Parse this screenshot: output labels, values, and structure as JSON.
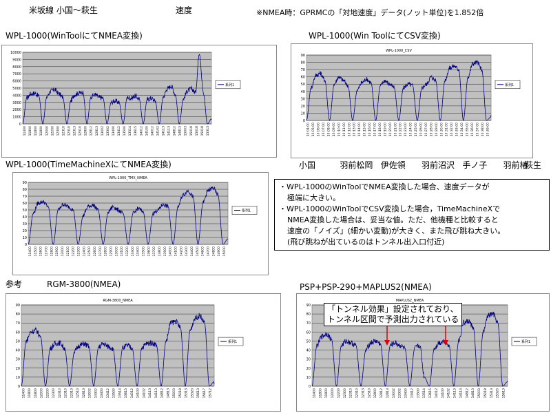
{
  "header": {
    "route": "米坂線 小国〜萩生",
    "topic": "速度",
    "formula": "※NMEA時：GPRMCの「対地速度」データ(ノット単位)を1.852倍"
  },
  "stations": [
    "小国",
    "羽前松岡",
    "伊佐領",
    "羽前沼沢",
    "手ノ子",
    "羽前椿",
    "萩生"
  ],
  "notes": [
    "・WPL-1000のWinToolでNMEA変換した場合、速度データが",
    "極端に大きい。",
    "・WPL-1000のWinToolでCSV変換した場合，TimeMachineXで",
    "NMEA変換した場合は、妥当な値。ただ、他機種と比較すると",
    "速度の「ノイズ」(細かい変動)が大きく、また飛び跳ね大きい。",
    "(飛び跳ねが出ているのはトンネル出入口付近)"
  ],
  "callout": [
    "「トンネル効果」設定されており、",
    "トンネル区間で予測出力されている"
  ],
  "chart_data": [
    {
      "id": "c1",
      "type": "line",
      "label": "WPL-1000(WinToolにてNMEA変換)",
      "title": "",
      "series": [
        {
          "name": "系列1",
          "values": [
            0,
            3600,
            4200,
            4300,
            3900,
            0,
            3800,
            4600,
            4800,
            4200,
            3700,
            0,
            3300,
            4100,
            4300,
            4400,
            0,
            3800,
            4100,
            3700,
            3600,
            0,
            3000,
            3200,
            3000,
            0,
            3700,
            3600,
            3900,
            3500,
            0,
            3400,
            3600,
            3200,
            0,
            3800,
            4900,
            5300,
            4100,
            0,
            3500,
            4600,
            4900,
            4400,
            10000,
            4200,
            0,
            700
          ]
        }
      ],
      "ylim": [
        0,
        10000
      ],
      "yticks": [
        0,
        1000,
        2000,
        3000,
        4000,
        5000,
        6000,
        7000,
        8000,
        9000,
        10000
      ],
      "xticks": [
        "11400",
        "11800",
        "11800",
        "11800",
        "12000",
        "12200",
        "12300",
        "12310",
        "12310",
        "12313",
        "12510",
        "12800",
        "12812",
        "12813",
        "13002",
        "13302",
        "13400",
        "13412",
        "13500",
        "13514",
        "13615",
        "14012",
        "14100",
        "14012",
        "14102",
        "14113",
        "14113",
        "14812",
        "14813",
        "15003",
        "15018",
        "15018",
        "15018",
        "15313"
      ],
      "legend_position": "right"
    },
    {
      "id": "c2",
      "type": "line",
      "label": "WPL-1000(Win ToolにてCSV変換)",
      "title": "WPL-1000_CSV",
      "series": [
        {
          "name": "系列1",
          "values": [
            0,
            45,
            62,
            65,
            55,
            0,
            50,
            60,
            55,
            48,
            0,
            42,
            52,
            57,
            52,
            0,
            48,
            55,
            50,
            45,
            0,
            45,
            50,
            48,
            0,
            45,
            50,
            60,
            55,
            0,
            55,
            72,
            75,
            70,
            0,
            60,
            78,
            80,
            70,
            0,
            5
          ]
        }
      ],
      "ylim": [
        0,
        90
      ],
      "yticks": [
        0,
        10,
        20,
        30,
        40,
        50,
        60,
        70,
        80,
        90
      ],
      "xticks": [
        "10:04:00",
        "10:05:00",
        "10:06:00",
        "10:07:00",
        "10:08:00",
        "10:09:00",
        "10:10:00",
        "10:11:00",
        "10:12:00",
        "10:13:00",
        "10:14:00",
        "10:15:00",
        "10:16:00",
        "10:17:00",
        "10:18:00",
        "10:19:00",
        "10:20:00",
        "10:21:00",
        "10:22:00",
        "10:23:00",
        "10:24:00",
        "10:25:00",
        "10:26:00",
        "10:27:00",
        "10:28:00",
        "10:29:00",
        "10:30:00",
        "10:31:00",
        "10:32:00",
        "10:33:00",
        "10:34:00",
        "10:35:00",
        "10:36:00",
        "10:37:00",
        "10:38:00",
        "10:39:00"
      ],
      "legend_position": "right"
    },
    {
      "id": "c3",
      "type": "line",
      "label": "WPL-1000(TimeMachineXにてNMEA変換)",
      "title": "WPL-1000_TMX_NMEA",
      "series": [
        {
          "name": "系列1",
          "values": [
            0,
            45,
            60,
            62,
            55,
            0,
            50,
            58,
            55,
            50,
            0,
            42,
            55,
            57,
            50,
            0,
            47,
            55,
            50,
            45,
            0,
            45,
            52,
            48,
            0,
            45,
            50,
            58,
            55,
            0,
            55,
            72,
            78,
            70,
            0,
            60,
            78,
            82,
            72,
            0,
            8
          ]
        }
      ],
      "ylim": [
        0,
        90
      ],
      "yticks": [
        0,
        10,
        20,
        30,
        40,
        50,
        60,
        70,
        80,
        90
      ],
      "xticks": [
        "11400",
        "11500",
        "11600",
        "11700",
        "11800",
        "11900",
        "12000",
        "12100",
        "12200",
        "12300",
        "12400",
        "12500",
        "12600",
        "12700",
        "12800",
        "12900",
        "13000",
        "13100",
        "13200",
        "13300",
        "13400",
        "13500",
        "13600",
        "13700",
        "13800",
        "13900",
        "14000",
        "14100",
        "14200",
        "14300",
        "14400",
        "14500",
        "14600",
        "14700",
        "14800",
        "14900",
        "15000"
      ],
      "legend_position": "right"
    },
    {
      "id": "c4",
      "type": "line",
      "label": "RGM-3800(NMEA)",
      "title": "RGM-3800_NMEA",
      "prefix": "参考",
      "series": [
        {
          "name": "系列1",
          "values": [
            0,
            50,
            60,
            62,
            55,
            0,
            42,
            47,
            48,
            42,
            0,
            38,
            45,
            47,
            44,
            0,
            43,
            47,
            44,
            42,
            0,
            42,
            45,
            42,
            0,
            43,
            47,
            48,
            46,
            0,
            50,
            70,
            72,
            65,
            0,
            62,
            75,
            78,
            70,
            0,
            5
          ]
        }
      ],
      "ylim": [
        0,
        90
      ],
      "yticks": [
        0,
        10,
        20,
        30,
        40,
        50,
        60,
        70,
        80,
        90
      ],
      "xticks": [
        "11400",
        "11800",
        "11800",
        "12000",
        "12200",
        "12300",
        "12310",
        "12310",
        "12313",
        "12510",
        "12813",
        "13002",
        "13302",
        "13400",
        "13412",
        "13500",
        "13514",
        "13615",
        "14012",
        "14100",
        "14102",
        "14113",
        "14113",
        "14812",
        "14813",
        "15003",
        "15018",
        "15313",
        "15320",
        "15613",
        "15617",
        "15712"
      ],
      "legend_position": "right"
    },
    {
      "id": "c5",
      "type": "line",
      "label": "PSP+PSP-290+MAPLUS2(NMEA)",
      "title": "MAPLUS2_NMEA",
      "series": [
        {
          "name": "系列1",
          "values": [
            0,
            45,
            55,
            58,
            52,
            0,
            45,
            50,
            48,
            45,
            0,
            40,
            48,
            50,
            47,
            0,
            45,
            48,
            45,
            42,
            0,
            42,
            45,
            10,
            0,
            42,
            48,
            50,
            46,
            0,
            50,
            70,
            72,
            65,
            0,
            60,
            78,
            80,
            70,
            0,
            5
          ]
        }
      ],
      "ylim": [
        0,
        90
      ],
      "yticks": [
        0,
        10,
        20,
        30,
        40,
        50,
        60,
        70,
        80,
        90
      ],
      "xticks": [
        "11400",
        "11800",
        "11800",
        "12000",
        "12200",
        "12300",
        "12310",
        "12310",
        "12313",
        "12510",
        "12800",
        "12812",
        "12813",
        "13002",
        "13302",
        "13400",
        "13412",
        "13500",
        "13514",
        "13615",
        "14012",
        "14100",
        "14102",
        "14113",
        "14113",
        "14812",
        "14813",
        "15003",
        "15018",
        "15313",
        "15320",
        "15613"
      ],
      "legend_position": "right"
    }
  ]
}
